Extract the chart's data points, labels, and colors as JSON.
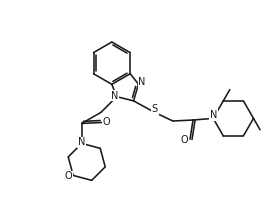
{
  "bg_color": "#ffffff",
  "line_color": "#1a1a1a",
  "line_width": 1.15,
  "figsize": [
    2.68,
    2.13
  ],
  "dpi": 100,
  "xlim": [
    -1.5,
    11.5
  ],
  "ylim": [
    -1.0,
    9.5
  ]
}
